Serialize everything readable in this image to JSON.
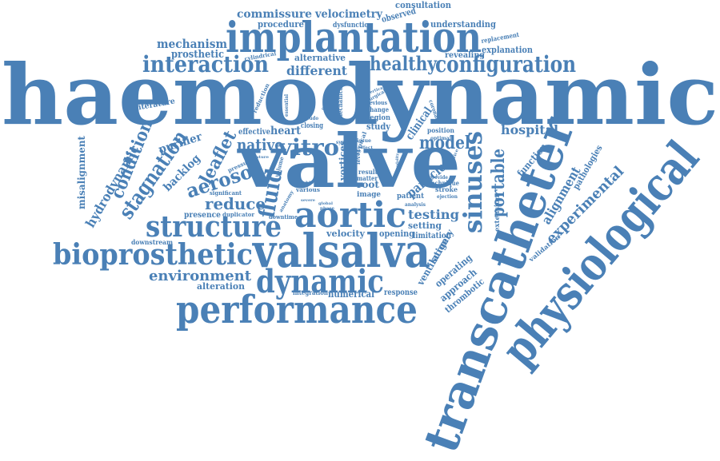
{
  "color": "#4a80b6",
  "words": {
    "haemodynamic": "haemodynamic",
    "valve": "valve",
    "implantation": "implantation",
    "transcatheter": "transcatheter",
    "physiological": "physiological",
    "valsalva": "valsalva",
    "performance": "performance",
    "bioprosthetic": "bioprosthetic",
    "dynamic": "dynamic",
    "aortic": "aortic",
    "structure": "structure",
    "interaction": "interaction",
    "configuration": "configuration",
    "sinuses": "sinuses",
    "healthy": "healthy",
    "stagnation": "stagnation",
    "condition": "condition",
    "fluid": "fluid",
    "vitro": "vitro",
    "aerosol": "aerosol",
    "reduce": "reduce",
    "leaflet": "leaflet",
    "native": "native",
    "model": "model",
    "environment": "environment",
    "commissure": "commissure",
    "velocimetry": "velocimetry",
    "different": "different",
    "mechanism": "mechanism",
    "testing": "testing",
    "portable": "portable",
    "experimental": "experimental",
    "alignment": "alignment",
    "hospital": "hospital",
    "hydrodynamic": "hydrodynamic",
    "misalignment": "misalignment",
    "purifier": "purifier",
    "backlog": "backlog",
    "particle": "particle",
    "surgery": "surgery",
    "ventilation": "ventilation",
    "operating": "operating",
    "approach": "approach",
    "thrombotic": "thrombotic",
    "prosthetic": "prosthetic",
    "alternative": "alternative",
    "procedure": "procedure",
    "consultation": "consultation",
    "understanding": "understanding",
    "explanation": "explanation",
    "replacement": "replacement",
    "revealing": "revealing",
    "observed": "observed",
    "dysfunction": "dysfunction",
    "literature": "literature",
    "cylindrical": "cylindrical",
    "reduction": "reduction",
    "heart": "heart",
    "effective": "effective",
    "pathologies": "pathologies",
    "function": "function",
    "extension": "extension",
    "validation": "validation",
    "alteration": "alteration",
    "downstream": "downstream",
    "presence": "presence",
    "duplicator": "duplicator",
    "significant": "significant",
    "pressure": "pressure",
    "downtime": "downtime",
    "velocity": "velocity",
    "opening": "opening",
    "setting": "setting",
    "limitation": "limitation",
    "numerical": "numerical",
    "response": "response",
    "integration": "integration",
    "root": "root",
    "image": "image",
    "patient": "patient",
    "study": "study",
    "region": "region",
    "change": "change",
    "previous": "previous",
    "clinical": "clinical",
    "position": "position",
    "optimal": "optimal",
    "technique": "technique",
    "stroke": "stroke",
    "ejection": "ejection",
    "result": "result",
    "matter": "matter",
    "vortices": "vortices",
    "typical": "typical",
    "issue": "issue",
    "closing": "closing",
    "various": "various",
    "anatomy": "anatomy",
    "global": "global",
    "mechanical": "mechanical",
    "potential": "potential",
    "pseudo": "pseudo",
    "surgical": "surgical",
    "coronary": "coronary",
    "analysis": "analysis",
    "system": "system",
    "volume": "volume",
    "phase": "phase",
    "blood": "blood",
    "nature": "nature",
    "essential": "essential",
    "level": "level",
    "effect": "effect",
    "severe": "severe",
    "provide": "provide",
    "modality": "modality",
    "device": "device",
    "vertical": "vertical",
    "cortical": "cortical"
  }
}
